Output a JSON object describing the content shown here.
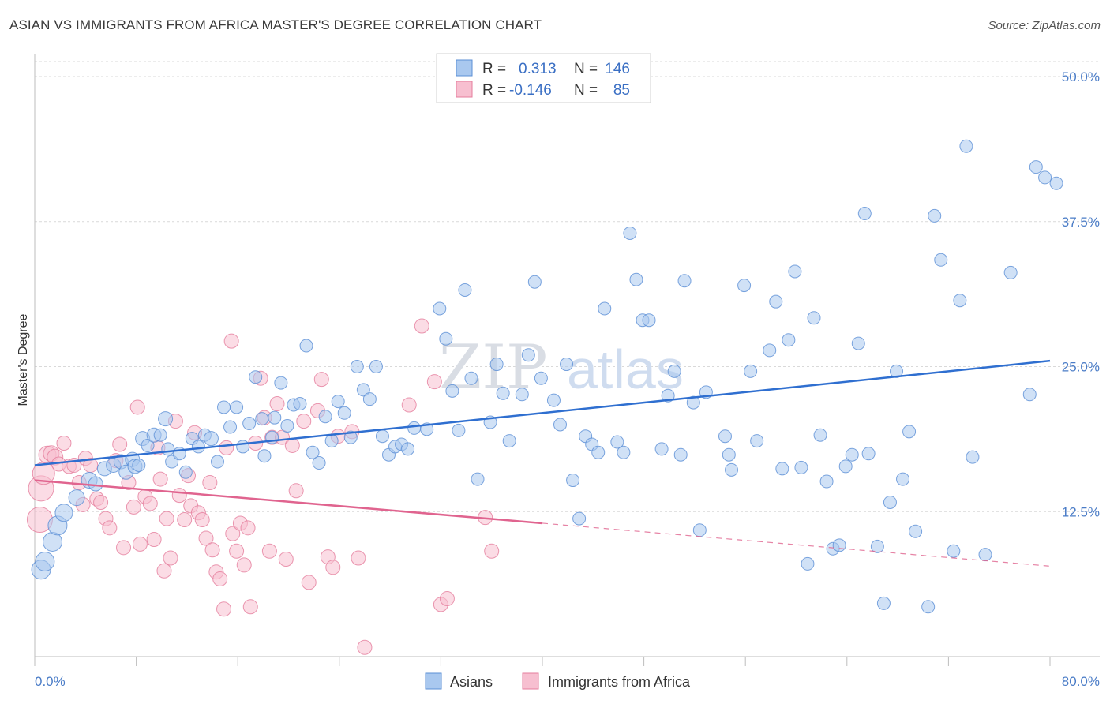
{
  "title": "ASIAN VS IMMIGRANTS FROM AFRICA MASTER'S DEGREE CORRELATION CHART",
  "source": "Source: ZipAtlas.com",
  "watermark": {
    "zip": "ZIP",
    "atlas": "atlas"
  },
  "colors": {
    "asian_fill": "#a9c8ef",
    "asian_stroke": "#5b8fd6",
    "asian_line": "#2f6fd0",
    "africa_fill": "#f7bfd0",
    "africa_stroke": "#e57d9c",
    "africa_line": "#e0648f",
    "grid": "#d9d9d9",
    "tick_text": "#4a7cc7"
  },
  "legend": {
    "rows": [
      {
        "r_label": "R =",
        "r_value": "0.313",
        "n_label": "N =",
        "n_value": "146"
      },
      {
        "r_label": "R =",
        "r_value": "-0.146",
        "n_label": "N =",
        "n_value": "85"
      }
    ]
  },
  "bottom_legend": [
    "Asians",
    "Immigrants from Africa"
  ],
  "chart_data": {
    "type": "scatter",
    "title": "ASIAN VS IMMIGRANTS FROM AFRICA MASTER'S DEGREE CORRELATION CHART",
    "xlabel": "",
    "ylabel": "Master's Degree",
    "xlim": [
      0,
      80
    ],
    "ylim": [
      0,
      50
    ],
    "x_tick_labels": [
      "0.0%",
      "80.0%"
    ],
    "y_ticks": [
      12.5,
      25.0,
      37.5,
      50.0
    ],
    "y_tick_labels": [
      "12.5%",
      "25.0%",
      "37.5%",
      "50.0%"
    ],
    "grid": true,
    "legend_position": "top-center",
    "series": [
      {
        "name": "Asians",
        "r": 0.313,
        "n": 146,
        "trend": {
          "x": [
            0,
            80
          ],
          "y": [
            16.5,
            25.5
          ],
          "style": "solid"
        },
        "points": [
          [
            0.5,
            7.5,
            12
          ],
          [
            0.8,
            8.2,
            12
          ],
          [
            1.4,
            9.9,
            12
          ],
          [
            1.8,
            11.3,
            12
          ],
          [
            2.3,
            12.4,
            11
          ],
          [
            3.3,
            13.7,
            10
          ],
          [
            4.3,
            15.2,
            10
          ],
          [
            4.8,
            14.9,
            9
          ],
          [
            5.5,
            16.2,
            9
          ],
          [
            6.2,
            16.5,
            9
          ],
          [
            6.8,
            16.8,
            9
          ],
          [
            7.2,
            15.9,
            9
          ],
          [
            7.7,
            17.0,
            9
          ],
          [
            7.9,
            16.4,
            9
          ],
          [
            8.2,
            16.5,
            8
          ],
          [
            8.5,
            18.8,
            9
          ],
          [
            8.9,
            18.2,
            8
          ],
          [
            9.4,
            19.1,
            9
          ],
          [
            9.9,
            19.1,
            8
          ],
          [
            10.3,
            20.5,
            9
          ],
          [
            10.5,
            17.9,
            8
          ],
          [
            10.8,
            16.8,
            8
          ],
          [
            11.4,
            17.5,
            8
          ],
          [
            11.9,
            15.9,
            8
          ],
          [
            12.4,
            18.8,
            8
          ],
          [
            12.9,
            18.1,
            8
          ],
          [
            13.4,
            19.1,
            8
          ],
          [
            13.9,
            18.8,
            9
          ],
          [
            14.4,
            16.8,
            8
          ],
          [
            14.9,
            21.5,
            8
          ],
          [
            15.4,
            19.8,
            8
          ],
          [
            15.9,
            21.5,
            8
          ],
          [
            16.4,
            18.1,
            8
          ],
          [
            16.9,
            20.1,
            8
          ],
          [
            17.4,
            24.1,
            8
          ],
          [
            17.9,
            20.5,
            8
          ],
          [
            18.1,
            17.3,
            8
          ],
          [
            18.7,
            18.9,
            8
          ],
          [
            18.9,
            20.6,
            8
          ],
          [
            19.4,
            23.6,
            8
          ],
          [
            19.9,
            19.9,
            8
          ],
          [
            20.4,
            21.7,
            8
          ],
          [
            20.9,
            21.8,
            8
          ],
          [
            21.4,
            26.8,
            8
          ],
          [
            21.9,
            17.6,
            8
          ],
          [
            22.4,
            16.7,
            8
          ],
          [
            22.9,
            20.7,
            8
          ],
          [
            23.4,
            18.6,
            8
          ],
          [
            23.9,
            22.0,
            8
          ],
          [
            24.4,
            21.0,
            8
          ],
          [
            24.9,
            18.9,
            8
          ],
          [
            25.4,
            25.0,
            8
          ],
          [
            25.9,
            23.0,
            8
          ],
          [
            26.4,
            22.2,
            8
          ],
          [
            26.9,
            25.0,
            8
          ],
          [
            27.4,
            19.0,
            8
          ],
          [
            27.9,
            17.4,
            8
          ],
          [
            28.4,
            18.1,
            8
          ],
          [
            28.9,
            18.3,
            8
          ],
          [
            29.4,
            17.9,
            8
          ],
          [
            29.9,
            19.7,
            8
          ],
          [
            30.9,
            19.6,
            8
          ],
          [
            31.9,
            30.0,
            8
          ],
          [
            32.4,
            27.4,
            8
          ],
          [
            32.9,
            22.9,
            8
          ],
          [
            33.4,
            19.5,
            8
          ],
          [
            33.9,
            31.6,
            8
          ],
          [
            34.4,
            24.0,
            8
          ],
          [
            34.9,
            15.3,
            8
          ],
          [
            35.9,
            20.2,
            8
          ],
          [
            36.4,
            25.2,
            8
          ],
          [
            36.9,
            22.7,
            8
          ],
          [
            37.4,
            18.6,
            8
          ],
          [
            38.4,
            22.6,
            8
          ],
          [
            38.9,
            26.0,
            8
          ],
          [
            39.4,
            32.3,
            8
          ],
          [
            39.9,
            24.0,
            8
          ],
          [
            40.9,
            22.1,
            8
          ],
          [
            41.4,
            20.0,
            8
          ],
          [
            41.9,
            25.2,
            8
          ],
          [
            42.4,
            15.2,
            8
          ],
          [
            42.9,
            11.9,
            8
          ],
          [
            43.4,
            19.0,
            8
          ],
          [
            43.9,
            18.3,
            8
          ],
          [
            44.4,
            17.6,
            8
          ],
          [
            44.9,
            30.0,
            8
          ],
          [
            45.9,
            18.5,
            8
          ],
          [
            46.4,
            17.6,
            8
          ],
          [
            46.9,
            36.5,
            8
          ],
          [
            47.4,
            32.5,
            8
          ],
          [
            47.9,
            29.0,
            8
          ],
          [
            48.4,
            29.0,
            8
          ],
          [
            49.4,
            17.9,
            8
          ],
          [
            49.9,
            22.5,
            8
          ],
          [
            50.4,
            24.6,
            8
          ],
          [
            50.9,
            17.4,
            8
          ],
          [
            51.2,
            32.4,
            8
          ],
          [
            51.9,
            21.9,
            8
          ],
          [
            52.4,
            10.9,
            8
          ],
          [
            52.9,
            22.8,
            8
          ],
          [
            54.4,
            19.0,
            8
          ],
          [
            54.7,
            17.4,
            8
          ],
          [
            54.9,
            16.1,
            8
          ],
          [
            55.9,
            32.0,
            8
          ],
          [
            56.4,
            24.6,
            8
          ],
          [
            56.9,
            18.6,
            8
          ],
          [
            57.9,
            26.4,
            8
          ],
          [
            58.4,
            30.6,
            8
          ],
          [
            58.9,
            16.2,
            8
          ],
          [
            59.4,
            27.3,
            8
          ],
          [
            59.9,
            33.2,
            8
          ],
          [
            60.4,
            16.3,
            8
          ],
          [
            60.9,
            8.0,
            8
          ],
          [
            61.4,
            29.2,
            8
          ],
          [
            61.9,
            19.1,
            8
          ],
          [
            62.4,
            15.1,
            8
          ],
          [
            62.9,
            9.3,
            8
          ],
          [
            63.4,
            9.6,
            8
          ],
          [
            63.9,
            16.4,
            8
          ],
          [
            64.4,
            17.4,
            8
          ],
          [
            64.9,
            27.0,
            8
          ],
          [
            65.4,
            38.2,
            8
          ],
          [
            65.7,
            17.5,
            8
          ],
          [
            66.4,
            9.5,
            8
          ],
          [
            66.9,
            4.6,
            8
          ],
          [
            67.4,
            13.3,
            8
          ],
          [
            67.9,
            24.6,
            8
          ],
          [
            68.4,
            15.3,
            8
          ],
          [
            68.9,
            19.4,
            8
          ],
          [
            69.4,
            10.8,
            8
          ],
          [
            70.4,
            4.3,
            8
          ],
          [
            70.9,
            38.0,
            8
          ],
          [
            71.4,
            34.2,
            8
          ],
          [
            72.4,
            9.1,
            8
          ],
          [
            72.9,
            30.7,
            8
          ],
          [
            73.4,
            44.0,
            8
          ],
          [
            73.9,
            17.2,
            8
          ],
          [
            74.9,
            8.8,
            8
          ],
          [
            76.9,
            33.1,
            8
          ],
          [
            78.4,
            22.6,
            8
          ],
          [
            78.9,
            42.2,
            8
          ],
          [
            79.6,
            41.3,
            8
          ],
          [
            80.5,
            40.8,
            8
          ]
        ]
      },
      {
        "name": "Immigrants from Africa",
        "r": -0.146,
        "n": 85,
        "trend": {
          "x": [
            0,
            40
          ],
          "y": [
            15.2,
            11.5
          ],
          "style": "solid",
          "extension": {
            "x": [
              40,
              80
            ],
            "y": [
              11.5,
              7.8
            ],
            "style": "dashed"
          }
        },
        "points": [
          [
            0.4,
            11.8,
            16
          ],
          [
            0.5,
            14.5,
            16
          ],
          [
            0.7,
            15.8,
            14
          ],
          [
            1.0,
            17.4,
            11
          ],
          [
            1.3,
            17.5,
            10
          ],
          [
            1.6,
            17.2,
            10
          ],
          [
            1.9,
            16.6,
            9
          ],
          [
            2.3,
            18.4,
            9
          ],
          [
            2.7,
            16.4,
            9
          ],
          [
            3.1,
            16.5,
            9
          ],
          [
            3.5,
            15.0,
            9
          ],
          [
            3.8,
            13.1,
            9
          ],
          [
            4.0,
            17.1,
            9
          ],
          [
            4.4,
            16.5,
            9
          ],
          [
            4.9,
            13.6,
            9
          ],
          [
            5.2,
            13.3,
            9
          ],
          [
            5.6,
            11.9,
            9
          ],
          [
            5.9,
            11.1,
            9
          ],
          [
            6.4,
            16.9,
            9
          ],
          [
            6.7,
            18.3,
            9
          ],
          [
            7.0,
            9.4,
            9
          ],
          [
            7.4,
            15.0,
            9
          ],
          [
            7.8,
            12.9,
            9
          ],
          [
            8.1,
            21.5,
            9
          ],
          [
            8.3,
            9.7,
            9
          ],
          [
            8.7,
            13.8,
            9
          ],
          [
            9.1,
            13.2,
            9
          ],
          [
            9.4,
            10.1,
            9
          ],
          [
            9.7,
            18.0,
            9
          ],
          [
            9.9,
            15.3,
            9
          ],
          [
            10.2,
            7.4,
            9
          ],
          [
            10.4,
            11.9,
            9
          ],
          [
            10.7,
            8.5,
            9
          ],
          [
            11.1,
            20.3,
            9
          ],
          [
            11.4,
            13.9,
            9
          ],
          [
            11.8,
            11.8,
            9
          ],
          [
            12.1,
            15.6,
            9
          ],
          [
            12.3,
            13.0,
            9
          ],
          [
            12.6,
            19.3,
            9
          ],
          [
            12.9,
            12.4,
            9
          ],
          [
            13.2,
            11.8,
            9
          ],
          [
            13.5,
            10.2,
            9
          ],
          [
            13.8,
            15.0,
            9
          ],
          [
            14.0,
            9.2,
            9
          ],
          [
            14.3,
            7.3,
            9
          ],
          [
            14.6,
            6.7,
            9
          ],
          [
            14.9,
            4.1,
            9
          ],
          [
            15.1,
            18.0,
            9
          ],
          [
            15.5,
            27.2,
            9
          ],
          [
            15.6,
            10.6,
            9
          ],
          [
            15.9,
            9.1,
            9
          ],
          [
            16.2,
            11.5,
            9
          ],
          [
            16.5,
            7.9,
            9
          ],
          [
            16.8,
            11.1,
            9
          ],
          [
            17.0,
            4.3,
            9
          ],
          [
            17.4,
            18.4,
            9
          ],
          [
            17.8,
            24.0,
            9
          ],
          [
            18.1,
            20.6,
            9
          ],
          [
            18.5,
            9.1,
            9
          ],
          [
            18.7,
            18.9,
            9
          ],
          [
            19.1,
            21.8,
            9
          ],
          [
            19.5,
            18.9,
            9
          ],
          [
            19.8,
            8.4,
            9
          ],
          [
            20.3,
            18.2,
            9
          ],
          [
            20.6,
            14.3,
            9
          ],
          [
            21.2,
            20.3,
            9
          ],
          [
            21.6,
            6.4,
            9
          ],
          [
            22.3,
            21.2,
            9
          ],
          [
            22.6,
            23.9,
            9
          ],
          [
            23.1,
            8.6,
            9
          ],
          [
            23.5,
            7.7,
            9
          ],
          [
            23.9,
            19.0,
            9
          ],
          [
            25.0,
            19.4,
            9
          ],
          [
            25.5,
            8.5,
            9
          ],
          [
            26.0,
            0.8,
            9
          ],
          [
            29.5,
            21.7,
            9
          ],
          [
            30.5,
            28.5,
            9
          ],
          [
            31.5,
            23.7,
            9
          ],
          [
            32.0,
            4.5,
            9
          ],
          [
            32.5,
            5.0,
            9
          ],
          [
            35.5,
            12.0,
            9
          ],
          [
            36.0,
            9.1,
            9
          ]
        ]
      }
    ]
  }
}
